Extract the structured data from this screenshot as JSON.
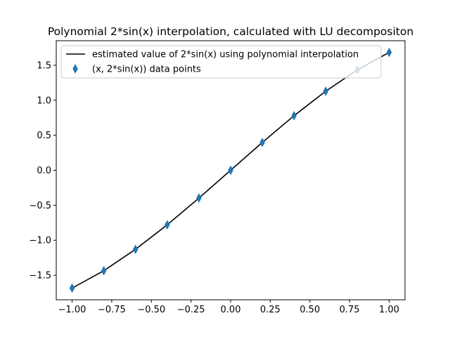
{
  "chart_data": {
    "type": "line",
    "title": "Polynomial 2*sin(x) interpolation, calculated with LU decompositon",
    "xlabel": "",
    "ylabel": "",
    "xlim": [
      -1.1,
      1.1
    ],
    "ylim": [
      -1.85,
      1.85
    ],
    "x_ticks": [
      -1.0,
      -0.75,
      -0.5,
      -0.25,
      0.0,
      0.25,
      0.5,
      0.75,
      1.0
    ],
    "x_tick_labels": [
      "−1.00",
      "−0.75",
      "−0.50",
      "−0.25",
      "0.00",
      "0.25",
      "0.50",
      "0.75",
      "1.00"
    ],
    "y_ticks": [
      -1.5,
      -1.0,
      -0.5,
      0.0,
      0.5,
      1.0,
      1.5
    ],
    "y_tick_labels": [
      "−1.5",
      "−1.0",
      "−0.5",
      "0.0",
      "0.5",
      "1.0",
      "1.5"
    ],
    "grid": false,
    "legend_position": "upper-left",
    "series": [
      {
        "name": "estimated value of 2*sin(x) using polynomial interpolation",
        "kind": "line",
        "color": "#000000",
        "x": [
          -1.0,
          -0.8,
          -0.6,
          -0.4,
          -0.2,
          0.0,
          0.2,
          0.4,
          0.6,
          0.8,
          1.0
        ],
        "y": [
          -1.683,
          -1.435,
          -1.129,
          -0.779,
          -0.397,
          0.0,
          0.397,
          0.779,
          1.129,
          1.435,
          1.683
        ]
      },
      {
        "name": "(x, 2*sin(x)) data points",
        "kind": "scatter",
        "marker": "thin-diamond",
        "color": "#1f77b4",
        "x": [
          -1.0,
          -0.8,
          -0.6,
          -0.4,
          -0.2,
          0.0,
          0.2,
          0.4,
          0.6,
          0.8,
          1.0
        ],
        "y": [
          -1.683,
          -1.435,
          -1.129,
          -0.779,
          -0.397,
          0.0,
          0.397,
          0.779,
          1.129,
          1.435,
          1.683
        ]
      }
    ]
  }
}
